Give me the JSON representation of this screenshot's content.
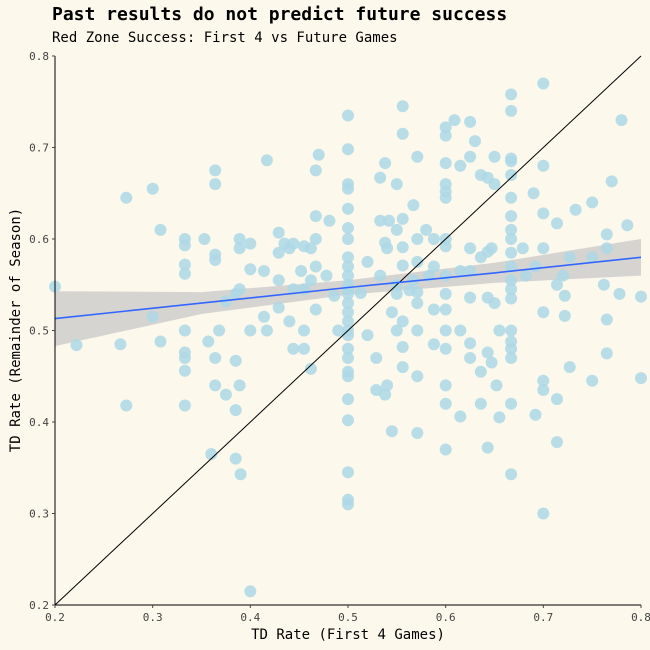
{
  "chart_data": {
    "type": "scatter",
    "title": "Past results do not predict future success",
    "subtitle": "Red Zone Success: First 4 vs Future Games",
    "xlabel": "TD Rate (First 4 Games)",
    "ylabel": "TD Rate (Remainder of Season)",
    "xlim": [
      0.2,
      0.8
    ],
    "ylim": [
      0.2,
      0.8
    ],
    "xticks": [
      "0.2",
      "0.3",
      "0.4",
      "0.5",
      "0.6",
      "0.7",
      "0.8"
    ],
    "yticks": [
      "0.2",
      "0.3",
      "0.4",
      "0.5",
      "0.6",
      "0.7",
      "0.8"
    ],
    "grid": false,
    "point_color": "#add8e6",
    "trend_color": "#3366ff",
    "band_color": "#c8c8c8",
    "reference_line": {
      "x": [
        0.2,
        0.8
      ],
      "y": [
        0.2,
        0.8
      ],
      "color": "#000000"
    },
    "trend": {
      "x": [
        0.2,
        0.35,
        0.5,
        0.65,
        0.8
      ],
      "y": [
        0.513,
        0.53,
        0.547,
        0.563,
        0.58
      ],
      "lower": [
        0.483,
        0.518,
        0.539,
        0.552,
        0.56
      ],
      "upper": [
        0.543,
        0.542,
        0.555,
        0.574,
        0.6
      ]
    },
    "points": [
      [
        0.2,
        0.548
      ],
      [
        0.222,
        0.484
      ],
      [
        0.273,
        0.645
      ],
      [
        0.273,
        0.418
      ],
      [
        0.267,
        0.485
      ],
      [
        0.3,
        0.655
      ],
      [
        0.3,
        0.515
      ],
      [
        0.308,
        0.61
      ],
      [
        0.308,
        0.488
      ],
      [
        0.333,
        0.6
      ],
      [
        0.333,
        0.593
      ],
      [
        0.333,
        0.572
      ],
      [
        0.333,
        0.562
      ],
      [
        0.333,
        0.5
      ],
      [
        0.333,
        0.476
      ],
      [
        0.333,
        0.47
      ],
      [
        0.333,
        0.456
      ],
      [
        0.333,
        0.418
      ],
      [
        0.353,
        0.6
      ],
      [
        0.357,
        0.488
      ],
      [
        0.36,
        0.365
      ],
      [
        0.364,
        0.675
      ],
      [
        0.364,
        0.66
      ],
      [
        0.364,
        0.583
      ],
      [
        0.364,
        0.577
      ],
      [
        0.364,
        0.47
      ],
      [
        0.364,
        0.44
      ],
      [
        0.368,
        0.5
      ],
      [
        0.375,
        0.532
      ],
      [
        0.375,
        0.43
      ],
      [
        0.385,
        0.54
      ],
      [
        0.385,
        0.467
      ],
      [
        0.385,
        0.413
      ],
      [
        0.385,
        0.36
      ],
      [
        0.389,
        0.6
      ],
      [
        0.389,
        0.59
      ],
      [
        0.389,
        0.545
      ],
      [
        0.389,
        0.44
      ],
      [
        0.39,
        0.343
      ],
      [
        0.4,
        0.595
      ],
      [
        0.4,
        0.567
      ],
      [
        0.4,
        0.5
      ],
      [
        0.4,
        0.215
      ],
      [
        0.414,
        0.565
      ],
      [
        0.414,
        0.515
      ],
      [
        0.417,
        0.686
      ],
      [
        0.417,
        0.5
      ],
      [
        0.429,
        0.607
      ],
      [
        0.429,
        0.585
      ],
      [
        0.429,
        0.555
      ],
      [
        0.429,
        0.525
      ],
      [
        0.435,
        0.595
      ],
      [
        0.44,
        0.59
      ],
      [
        0.44,
        0.51
      ],
      [
        0.444,
        0.595
      ],
      [
        0.444,
        0.545
      ],
      [
        0.444,
        0.48
      ],
      [
        0.452,
        0.565
      ],
      [
        0.455,
        0.592
      ],
      [
        0.455,
        0.545
      ],
      [
        0.455,
        0.5
      ],
      [
        0.455,
        0.48
      ],
      [
        0.462,
        0.59
      ],
      [
        0.462,
        0.555
      ],
      [
        0.462,
        0.458
      ],
      [
        0.467,
        0.675
      ],
      [
        0.467,
        0.625
      ],
      [
        0.467,
        0.6
      ],
      [
        0.467,
        0.57
      ],
      [
        0.467,
        0.523
      ],
      [
        0.47,
        0.692
      ],
      [
        0.478,
        0.56
      ],
      [
        0.481,
        0.62
      ],
      [
        0.486,
        0.538
      ],
      [
        0.49,
        0.5
      ],
      [
        0.5,
        0.735
      ],
      [
        0.5,
        0.698
      ],
      [
        0.5,
        0.66
      ],
      [
        0.5,
        0.655
      ],
      [
        0.5,
        0.633
      ],
      [
        0.5,
        0.612
      ],
      [
        0.5,
        0.6
      ],
      [
        0.5,
        0.58
      ],
      [
        0.5,
        0.57
      ],
      [
        0.5,
        0.56
      ],
      [
        0.5,
        0.55
      ],
      [
        0.5,
        0.545
      ],
      [
        0.5,
        0.54
      ],
      [
        0.5,
        0.53
      ],
      [
        0.5,
        0.52
      ],
      [
        0.5,
        0.51
      ],
      [
        0.5,
        0.5
      ],
      [
        0.5,
        0.495
      ],
      [
        0.5,
        0.48
      ],
      [
        0.5,
        0.47
      ],
      [
        0.5,
        0.455
      ],
      [
        0.5,
        0.45
      ],
      [
        0.5,
        0.425
      ],
      [
        0.5,
        0.402
      ],
      [
        0.5,
        0.345
      ],
      [
        0.5,
        0.315
      ],
      [
        0.5,
        0.31
      ],
      [
        0.513,
        0.541
      ],
      [
        0.52,
        0.575
      ],
      [
        0.52,
        0.495
      ],
      [
        0.529,
        0.47
      ],
      [
        0.529,
        0.435
      ],
      [
        0.533,
        0.667
      ],
      [
        0.533,
        0.62
      ],
      [
        0.533,
        0.56
      ],
      [
        0.538,
        0.683
      ],
      [
        0.538,
        0.596
      ],
      [
        0.538,
        0.43
      ],
      [
        0.54,
        0.59
      ],
      [
        0.54,
        0.44
      ],
      [
        0.542,
        0.62
      ],
      [
        0.545,
        0.52
      ],
      [
        0.545,
        0.39
      ],
      [
        0.55,
        0.66
      ],
      [
        0.55,
        0.61
      ],
      [
        0.55,
        0.55
      ],
      [
        0.55,
        0.54
      ],
      [
        0.55,
        0.5
      ],
      [
        0.556,
        0.745
      ],
      [
        0.556,
        0.715
      ],
      [
        0.556,
        0.622
      ],
      [
        0.556,
        0.591
      ],
      [
        0.556,
        0.571
      ],
      [
        0.556,
        0.51
      ],
      [
        0.556,
        0.482
      ],
      [
        0.556,
        0.46
      ],
      [
        0.563,
        0.544
      ],
      [
        0.567,
        0.637
      ],
      [
        0.567,
        0.555
      ],
      [
        0.571,
        0.69
      ],
      [
        0.571,
        0.6
      ],
      [
        0.571,
        0.575
      ],
      [
        0.571,
        0.542
      ],
      [
        0.571,
        0.53
      ],
      [
        0.571,
        0.5
      ],
      [
        0.571,
        0.45
      ],
      [
        0.571,
        0.388
      ],
      [
        0.58,
        0.61
      ],
      [
        0.583,
        0.56
      ],
      [
        0.588,
        0.6
      ],
      [
        0.588,
        0.57
      ],
      [
        0.588,
        0.523
      ],
      [
        0.588,
        0.485
      ],
      [
        0.6,
        0.722
      ],
      [
        0.6,
        0.713
      ],
      [
        0.6,
        0.683
      ],
      [
        0.6,
        0.66
      ],
      [
        0.6,
        0.652
      ],
      [
        0.6,
        0.645
      ],
      [
        0.6,
        0.6
      ],
      [
        0.6,
        0.592
      ],
      [
        0.6,
        0.56
      ],
      [
        0.6,
        0.54
      ],
      [
        0.6,
        0.523
      ],
      [
        0.6,
        0.5
      ],
      [
        0.6,
        0.48
      ],
      [
        0.6,
        0.44
      ],
      [
        0.6,
        0.42
      ],
      [
        0.6,
        0.37
      ],
      [
        0.609,
        0.73
      ],
      [
        0.615,
        0.68
      ],
      [
        0.615,
        0.565
      ],
      [
        0.615,
        0.5
      ],
      [
        0.615,
        0.406
      ],
      [
        0.625,
        0.728
      ],
      [
        0.625,
        0.69
      ],
      [
        0.625,
        0.59
      ],
      [
        0.625,
        0.565
      ],
      [
        0.625,
        0.536
      ],
      [
        0.625,
        0.486
      ],
      [
        0.625,
        0.47
      ],
      [
        0.63,
        0.707
      ],
      [
        0.636,
        0.67
      ],
      [
        0.636,
        0.58
      ],
      [
        0.636,
        0.455
      ],
      [
        0.636,
        0.42
      ],
      [
        0.643,
        0.667
      ],
      [
        0.643,
        0.586
      ],
      [
        0.643,
        0.536
      ],
      [
        0.643,
        0.476
      ],
      [
        0.643,
        0.372
      ],
      [
        0.647,
        0.59
      ],
      [
        0.647,
        0.465
      ],
      [
        0.65,
        0.69
      ],
      [
        0.65,
        0.66
      ],
      [
        0.65,
        0.53
      ],
      [
        0.652,
        0.44
      ],
      [
        0.655,
        0.5
      ],
      [
        0.655,
        0.405
      ],
      [
        0.667,
        0.758
      ],
      [
        0.667,
        0.74
      ],
      [
        0.667,
        0.688
      ],
      [
        0.667,
        0.685
      ],
      [
        0.667,
        0.67
      ],
      [
        0.667,
        0.645
      ],
      [
        0.667,
        0.625
      ],
      [
        0.667,
        0.61
      ],
      [
        0.667,
        0.6
      ],
      [
        0.667,
        0.585
      ],
      [
        0.667,
        0.57
      ],
      [
        0.667,
        0.555
      ],
      [
        0.667,
        0.545
      ],
      [
        0.667,
        0.535
      ],
      [
        0.667,
        0.5
      ],
      [
        0.667,
        0.488
      ],
      [
        0.667,
        0.48
      ],
      [
        0.667,
        0.47
      ],
      [
        0.667,
        0.42
      ],
      [
        0.667,
        0.343
      ],
      [
        0.679,
        0.59
      ],
      [
        0.682,
        0.56
      ],
      [
        0.69,
        0.65
      ],
      [
        0.692,
        0.408
      ],
      [
        0.692,
        0.57
      ],
      [
        0.7,
        0.77
      ],
      [
        0.7,
        0.68
      ],
      [
        0.7,
        0.628
      ],
      [
        0.7,
        0.59
      ],
      [
        0.7,
        0.52
      ],
      [
        0.7,
        0.445
      ],
      [
        0.7,
        0.435
      ],
      [
        0.7,
        0.3
      ],
      [
        0.714,
        0.617
      ],
      [
        0.714,
        0.55
      ],
      [
        0.714,
        0.425
      ],
      [
        0.714,
        0.378
      ],
      [
        0.72,
        0.56
      ],
      [
        0.722,
        0.538
      ],
      [
        0.722,
        0.516
      ],
      [
        0.727,
        0.46
      ],
      [
        0.727,
        0.58
      ],
      [
        0.733,
        0.632
      ],
      [
        0.75,
        0.64
      ],
      [
        0.75,
        0.58
      ],
      [
        0.75,
        0.445
      ],
      [
        0.762,
        0.55
      ],
      [
        0.765,
        0.59
      ],
      [
        0.765,
        0.475
      ],
      [
        0.765,
        0.512
      ],
      [
        0.765,
        0.605
      ],
      [
        0.77,
        0.663
      ],
      [
        0.78,
        0.73
      ],
      [
        0.778,
        0.54
      ],
      [
        0.786,
        0.615
      ],
      [
        0.8,
        0.537
      ],
      [
        0.8,
        0.448
      ]
    ]
  }
}
